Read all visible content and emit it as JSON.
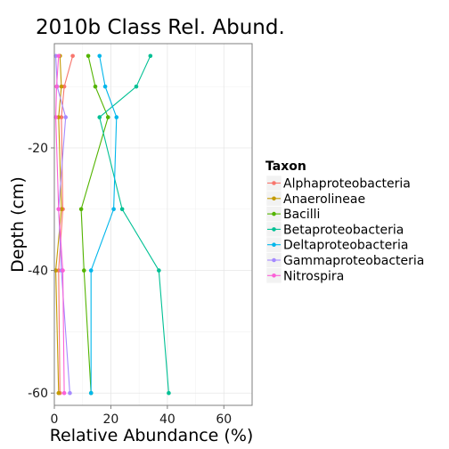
{
  "chart_data": {
    "type": "line",
    "title": "2010b Class Rel. Abund.",
    "xlabel": "Relative Abundance (%)",
    "ylabel": "Depth (cm)",
    "xlim": [
      0,
      70
    ],
    "ylim": [
      -62,
      -3
    ],
    "x_ticks": [
      0,
      20,
      40,
      60
    ],
    "y_ticks": [
      -20,
      -40,
      -60
    ],
    "grid": true,
    "legend_position": "right",
    "legend_title": "Taxon",
    "series": [
      {
        "name": "Alphaproteobacteria",
        "color": "#F8766D",
        "points": [
          [
            6.5,
            -5
          ],
          [
            3.5,
            -10
          ],
          [
            2.5,
            -15
          ],
          [
            3,
            -30
          ],
          [
            1.5,
            -40
          ],
          [
            2,
            -60
          ]
        ]
      },
      {
        "name": "Anaerolineae",
        "color": "#C49A00",
        "points": [
          [
            2,
            -5
          ],
          [
            2.5,
            -10
          ],
          [
            1.5,
            -15
          ],
          [
            2.5,
            -30
          ],
          [
            0.5,
            -40
          ],
          [
            1.5,
            -60
          ]
        ]
      },
      {
        "name": "Bacilli",
        "color": "#53B400",
        "points": [
          [
            12,
            -5
          ],
          [
            14.5,
            -10
          ],
          [
            19,
            -15
          ],
          [
            9.5,
            -30
          ],
          [
            10.5,
            -40
          ],
          [
            13,
            -60
          ]
        ]
      },
      {
        "name": "Betaproteobacteria",
        "color": "#00C094",
        "points": [
          [
            34,
            -5
          ],
          [
            29,
            -10
          ],
          [
            16,
            -15
          ],
          [
            24,
            -30
          ],
          [
            37,
            -40
          ],
          [
            40.5,
            -60
          ]
        ]
      },
      {
        "name": "Deltaproteobacteria",
        "color": "#00B6EB",
        "points": [
          [
            16,
            -5
          ],
          [
            18,
            -10
          ],
          [
            22,
            -15
          ],
          [
            21,
            -30
          ],
          [
            13,
            -40
          ],
          [
            13,
            -60
          ]
        ]
      },
      {
        "name": "Gammaproteobacteria",
        "color": "#A58AFF",
        "points": [
          [
            0.5,
            -5
          ],
          [
            1,
            -10
          ],
          [
            4,
            -15
          ],
          [
            1.5,
            -30
          ],
          [
            2.5,
            -40
          ],
          [
            5.5,
            -60
          ]
        ]
      },
      {
        "name": "Nitrospira",
        "color": "#FB61D7",
        "points": [
          [
            1.5,
            -5
          ],
          [
            0.8,
            -10
          ],
          [
            0.5,
            -15
          ],
          [
            1.5,
            -30
          ],
          [
            3,
            -40
          ],
          [
            3.5,
            -60
          ]
        ]
      }
    ]
  }
}
